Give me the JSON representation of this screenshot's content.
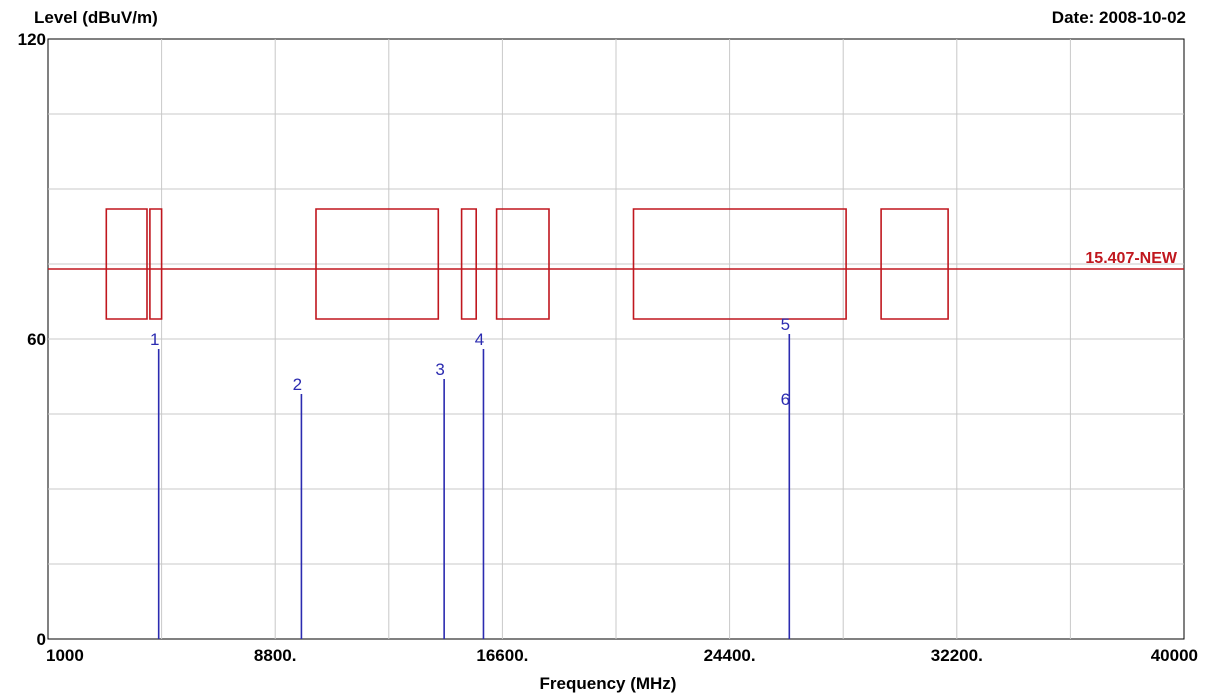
{
  "header": {
    "y_axis_title": "Level (dBuV/m)",
    "date_label": "Date: 2008-10-02"
  },
  "x_axis_title": "Frequency (MHz)",
  "chart_data": {
    "type": "line",
    "xlabel": "Frequency (MHz)",
    "ylabel": "Level (dBuV/m)",
    "xlim": [
      1000,
      40000
    ],
    "ylim": [
      0,
      120
    ],
    "x_ticks": [
      "1000",
      "8800.",
      "16600.",
      "24400.",
      "32200.",
      "40000"
    ],
    "y_ticks": [
      "0",
      "60",
      "120"
    ],
    "grid": true,
    "limit_line": {
      "label": "15.407-NEW",
      "color": "#c0171e",
      "segments": [
        [
          1000,
          74
        ],
        [
          3000,
          74
        ],
        [
          3000,
          86
        ],
        [
          4400,
          86
        ],
        [
          4400,
          64
        ],
        [
          3000,
          64
        ],
        [
          3000,
          74
        ],
        [
          4500,
          74
        ],
        [
          4500,
          86
        ],
        [
          4900,
          86
        ],
        [
          4900,
          64
        ],
        [
          4500,
          64
        ],
        [
          4500,
          74
        ],
        [
          10200,
          74
        ],
        [
          10200,
          86
        ],
        [
          14400,
          86
        ],
        [
          14400,
          64
        ],
        [
          10200,
          64
        ],
        [
          10200,
          74
        ],
        [
          15200,
          74
        ],
        [
          15200,
          86
        ],
        [
          15700,
          86
        ],
        [
          15700,
          64
        ],
        [
          15200,
          64
        ],
        [
          15200,
          74
        ],
        [
          16400,
          74
        ],
        [
          16400,
          86
        ],
        [
          18200,
          86
        ],
        [
          18200,
          64
        ],
        [
          16400,
          64
        ],
        [
          16400,
          74
        ],
        [
          21100,
          74
        ],
        [
          21100,
          86
        ],
        [
          28400,
          86
        ],
        [
          28400,
          64
        ],
        [
          21100,
          64
        ],
        [
          21100,
          74
        ],
        [
          29600,
          74
        ],
        [
          29600,
          86
        ],
        [
          31900,
          86
        ],
        [
          31900,
          64
        ],
        [
          29600,
          64
        ],
        [
          29600,
          74
        ],
        [
          40000,
          74
        ]
      ]
    },
    "markers": {
      "color": "#2b2bb0",
      "points": [
        {
          "label": "1",
          "x": 4800,
          "y": 58
        },
        {
          "label": "2",
          "x": 9700,
          "y": 49
        },
        {
          "label": "3",
          "x": 14600,
          "y": 52
        },
        {
          "label": "4",
          "x": 15950,
          "y": 58
        },
        {
          "label": "5",
          "x": 26450,
          "y": 61
        },
        {
          "label": "6",
          "x": 26450,
          "y": 46
        }
      ]
    }
  }
}
